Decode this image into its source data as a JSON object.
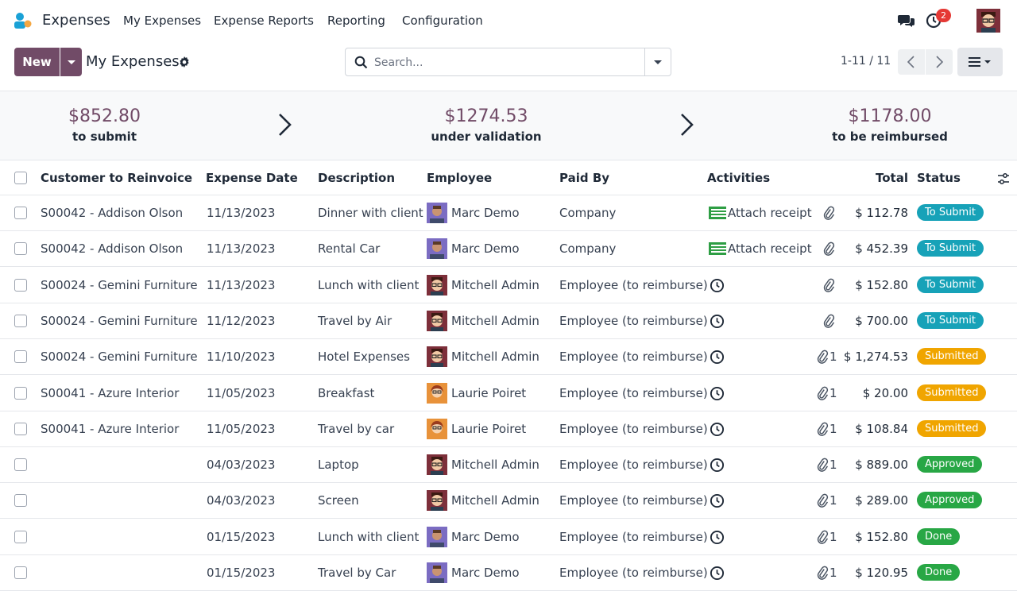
{
  "nav": {
    "app_name": "Expenses",
    "menus": [
      "My Expenses",
      "Expense Reports",
      "Reporting",
      "Configuration"
    ],
    "activity_count": "2"
  },
  "control": {
    "new_label": "New",
    "breadcrumb": "My Expenses",
    "search_placeholder": "Search...",
    "pager": "1-11 / 11"
  },
  "summary": [
    {
      "amount": "$852.80",
      "label": "to submit"
    },
    {
      "amount": "$1274.53",
      "label": "under validation"
    },
    {
      "amount": "$1178.00",
      "label": "to be reimbursed"
    }
  ],
  "columns": [
    "Customer to Reinvoice",
    "Expense Date",
    "Description",
    "Employee",
    "Paid By",
    "Activities",
    "Total",
    "Status"
  ],
  "colors": {
    "brand": "#714b67",
    "to_submit": "#17a2b8",
    "submitted": "#f0a500",
    "approved": "#28a745",
    "done": "#28a745"
  },
  "rows": [
    {
      "customer": "S00042 - Addison Olson",
      "date": "11/13/2023",
      "description": "Dinner with client",
      "employee": "Marc Demo",
      "avatar": "marc",
      "paid_by": "Company",
      "activity": "Attach receipt",
      "attachments": "",
      "total": "$ 112.78",
      "status": "To Submit",
      "status_kind": "to_submit"
    },
    {
      "customer": "S00042 - Addison Olson",
      "date": "11/13/2023",
      "description": "Rental Car",
      "employee": "Marc Demo",
      "avatar": "marc",
      "paid_by": "Company",
      "activity": "Attach receipt",
      "attachments": "",
      "total": "$ 452.39",
      "status": "To Submit",
      "status_kind": "to_submit"
    },
    {
      "customer": "S00024 - Gemini Furniture",
      "date": "11/13/2023",
      "description": "Lunch with client",
      "employee": "Mitchell Admin",
      "avatar": "mitchell",
      "paid_by": "Employee (to reimburse)",
      "activity": "",
      "attachments": "",
      "total": "$ 152.80",
      "status": "To Submit",
      "status_kind": "to_submit"
    },
    {
      "customer": "S00024 - Gemini Furniture",
      "date": "11/12/2023",
      "description": "Travel by Air",
      "employee": "Mitchell Admin",
      "avatar": "mitchell",
      "paid_by": "Employee (to reimburse)",
      "activity": "",
      "attachments": "",
      "total": "$ 700.00",
      "status": "To Submit",
      "status_kind": "to_submit"
    },
    {
      "customer": "S00024 - Gemini Furniture",
      "date": "11/10/2023",
      "description": "Hotel Expenses",
      "employee": "Mitchell Admin",
      "avatar": "mitchell",
      "paid_by": "Employee (to reimburse)",
      "activity": "",
      "attachments": "1",
      "total": "$ 1,274.53",
      "status": "Submitted",
      "status_kind": "submitted"
    },
    {
      "customer": "S00041 - Azure Interior",
      "date": "11/05/2023",
      "description": "Breakfast",
      "employee": "Laurie Poiret",
      "avatar": "laurie",
      "paid_by": "Employee (to reimburse)",
      "activity": "",
      "attachments": "1",
      "total": "$ 20.00",
      "status": "Submitted",
      "status_kind": "submitted"
    },
    {
      "customer": "S00041 - Azure Interior",
      "date": "11/05/2023",
      "description": "Travel by car",
      "employee": "Laurie Poiret",
      "avatar": "laurie",
      "paid_by": "Employee (to reimburse)",
      "activity": "",
      "attachments": "1",
      "total": "$ 108.84",
      "status": "Submitted",
      "status_kind": "submitted"
    },
    {
      "customer": "",
      "date": "04/03/2023",
      "description": "Laptop",
      "employee": "Mitchell Admin",
      "avatar": "mitchell",
      "paid_by": "Employee (to reimburse)",
      "activity": "",
      "attachments": "1",
      "total": "$ 889.00",
      "status": "Approved",
      "status_kind": "approved"
    },
    {
      "customer": "",
      "date": "04/03/2023",
      "description": "Screen",
      "employee": "Mitchell Admin",
      "avatar": "mitchell",
      "paid_by": "Employee (to reimburse)",
      "activity": "",
      "attachments": "1",
      "total": "$ 289.00",
      "status": "Approved",
      "status_kind": "approved"
    },
    {
      "customer": "",
      "date": "01/15/2023",
      "description": "Lunch with client",
      "employee": "Marc Demo",
      "avatar": "marc",
      "paid_by": "Employee (to reimburse)",
      "activity": "",
      "attachments": "1",
      "total": "$ 152.80",
      "status": "Done",
      "status_kind": "done"
    },
    {
      "customer": "",
      "date": "01/15/2023",
      "description": "Travel by Car",
      "employee": "Marc Demo",
      "avatar": "marc",
      "paid_by": "Employee (to reimburse)",
      "activity": "",
      "attachments": "1",
      "total": "$ 120.95",
      "status": "Done",
      "status_kind": "done"
    }
  ]
}
